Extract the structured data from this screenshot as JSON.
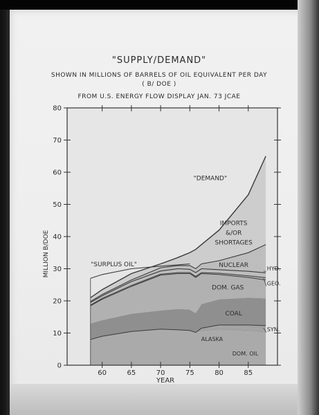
{
  "chart_data": {
    "type": "area",
    "title": "\"SUPPLY/DEMAND\"",
    "subtitle_lines": [
      "SHOWN IN MILLIONS OF BARRELS OF OIL EQUIVALENT PER DAY",
      "( B/ DOE )",
      "FROM U.S. ENERGY FLOW DISPLAY JAN. 73 JCAE"
    ],
    "xlabel": "YEAR",
    "ylabel": "MILLION B/DOE",
    "xlim": [
      1954,
      1890
    ],
    "x_range": [
      54,
      90
    ],
    "ylim": [
      0,
      80
    ],
    "x_ticks": [
      60,
      65,
      70,
      75,
      80,
      85
    ],
    "y_ticks": [
      0,
      10,
      20,
      30,
      40,
      50,
      60,
      70,
      80
    ],
    "x": [
      58,
      60,
      65,
      70,
      73,
      75,
      76,
      77,
      80,
      85,
      88
    ],
    "series": [
      {
        "name": "DOM. OIL",
        "values": [
          8,
          9,
          10.5,
          11.2,
          11,
          10.8,
          10.2,
          10.4,
          10.8,
          10.5,
          10
        ]
      },
      {
        "name": "ALASKA",
        "values": [
          8,
          9,
          10.5,
          11.2,
          11,
          10.8,
          10.2,
          11.5,
          12,
          11.5,
          11
        ]
      },
      {
        "name": "SYN.",
        "values": [
          8,
          9,
          10.5,
          11.2,
          11,
          10.8,
          10.2,
          11.5,
          12.5,
          12.5,
          12.3
        ]
      },
      {
        "name": "COAL",
        "values": [
          13,
          14,
          16,
          17,
          17.5,
          17.3,
          16.2,
          19,
          20.5,
          21,
          20.8
        ]
      },
      {
        "name": "DOM. GAS",
        "values": [
          18.5,
          20.5,
          24.5,
          28,
          28.5,
          28.5,
          27.3,
          28.5,
          28.2,
          27.3,
          26.5
        ]
      },
      {
        "name": "GEO.",
        "values": [
          18.7,
          20.8,
          24.8,
          28.3,
          28.8,
          28.8,
          27.6,
          28.8,
          28.6,
          27.8,
          27.2
        ]
      },
      {
        "name": "HYD.",
        "values": [
          19.5,
          21.6,
          26,
          29.3,
          30,
          29.8,
          28.8,
          30,
          29.7,
          29.2,
          28.7
        ]
      },
      {
        "name": "NUCLEAR",
        "values": [
          19.8,
          22,
          26.5,
          30.3,
          31,
          31,
          30,
          31.5,
          32.5,
          35,
          37.5
        ]
      },
      {
        "name": "IMPORTS & / OR SHORTAGES",
        "values": [
          21,
          23.5,
          28.5,
          31.5,
          33.5,
          35,
          36,
          37.5,
          42,
          53,
          65
        ]
      }
    ],
    "surplus_oil": {
      "x": [
        58,
        60,
        65,
        70,
        73,
        75
      ],
      "values": [
        27,
        28.2,
        30,
        30.8,
        31.2,
        31.5
      ]
    },
    "annotations": [
      "\"DEMAND\"",
      "IMPORTS",
      "&/OR",
      "SHORTAGES",
      "NUCLEAR",
      "HYD.",
      "GEO.",
      "DOM. GAS",
      "COAL",
      "SYN.",
      "ALASKA",
      "DOM. OIL",
      "\"SURPLUS OIL\""
    ],
    "grid": false
  },
  "colors": {
    "imports": "#cdcdcd",
    "nuclear": "#bdbdbd",
    "dom_gas": "#b1b1b1",
    "coal": "#8f8f8f",
    "alaska": "#a2a2a2",
    "dom_oil": "#aaaaaa",
    "outline": "#3a3a3a",
    "plot_bg": "#e6e6e6"
  }
}
